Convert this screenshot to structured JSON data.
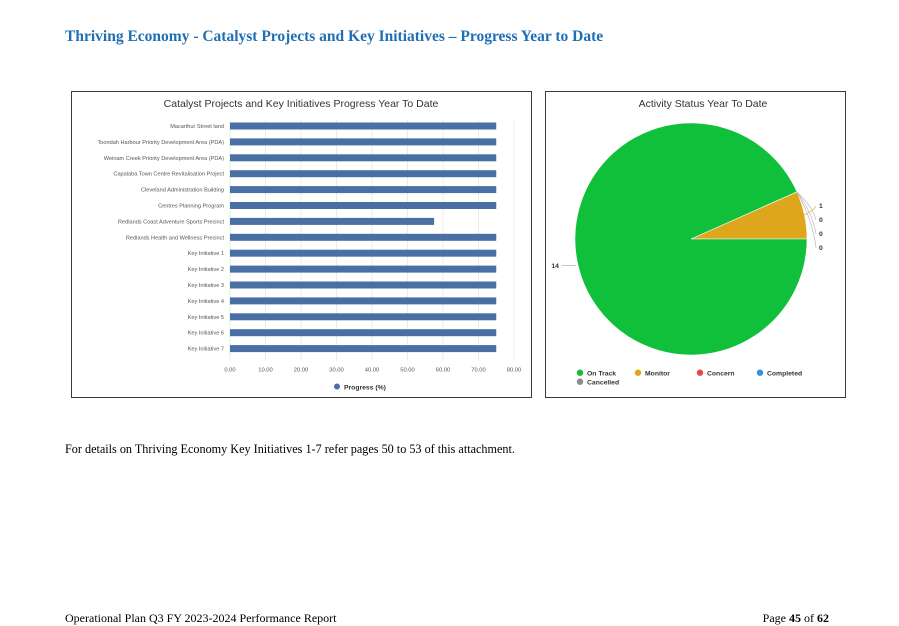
{
  "page": {
    "heading": "Thriving Economy - Catalyst Projects and Key Initiatives – Progress Year to Date",
    "body_text": "For details on Thriving Economy Key Initiatives 1-7 refer pages 50 to 53 of this attachment.",
    "footer_left": "Operational Plan Q3 FY 2023-2024 Performance Report",
    "footer_page_prefix": "Page",
    "footer_page_current": "45",
    "footer_page_of": "of",
    "footer_page_total": "62"
  },
  "chart_data": [
    {
      "type": "bar",
      "orientation": "horizontal",
      "title": "Catalyst Projects and Key Initiatives Progress Year To Date",
      "categories": [
        "Macarthur Street land",
        "Toondah Harbour Priority Development Area (PDA)",
        "Weinam Creek Priority Development Area (PDA)",
        "Capalaba Town Centre Revitalisation Project",
        "Cleveland Administration Building",
        "Centres Planning Program",
        "Redlands Coast Adventure Sports Precinct",
        "Redlands Health and Wellness Precinct",
        "Key Initiative 1",
        "Key Initiative 2",
        "Key Initiative 3",
        "Key Initiative 4",
        "Key Initiative 5",
        "Key Initiative 6",
        "Key Initiative 7"
      ],
      "series": [
        {
          "name": "Progress (%)",
          "color": "#4a6fa5",
          "values": [
            75,
            75,
            75,
            75,
            75,
            75,
            57.5,
            75,
            75,
            75,
            75,
            75,
            75,
            75,
            75
          ]
        }
      ],
      "xlim": [
        0,
        80
      ],
      "xticks": [
        "0.00",
        "10.00",
        "20.00",
        "30.00",
        "40.00",
        "50.00",
        "60.00",
        "70.00",
        "80.00"
      ],
      "grid": true,
      "legend_position": "bottom"
    },
    {
      "type": "pie",
      "title": "Activity Status Year To Date",
      "slices": [
        {
          "label": "On Track",
          "value": 14,
          "color": "#10bf3a"
        },
        {
          "label": "Monitor",
          "value": 1,
          "color": "#dda61c"
        },
        {
          "label": "Concern",
          "value": 0,
          "color": "#e8484a"
        },
        {
          "label": "Completed",
          "value": 0,
          "color": "#3b8fe0"
        },
        {
          "label": "Cancelled",
          "value": 0,
          "color": "#8c8c8c"
        }
      ],
      "legend_position": "bottom"
    }
  ]
}
